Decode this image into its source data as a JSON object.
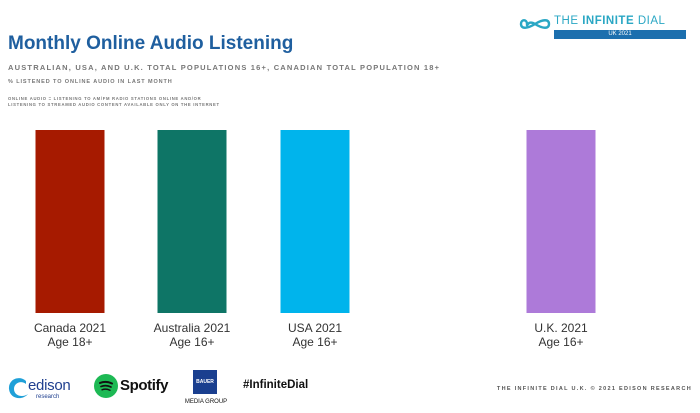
{
  "header": {
    "title": "Monthly Online Audio Listening",
    "subtitle": "AUSTRALIAN, USA, AND U.K. TOTAL POPULATIONS 16+, CANADIAN TOTAL POPULATION 18+",
    "subtitle2": "% LISTENED TO ONLINE AUDIO IN LAST MONTH",
    "note_line1": "ONLINE AUDIO = LISTENING TO AM/FM RADIO STATIONS ONLINE AND/OR",
    "note_line2": "LISTENING TO STREAMED AUDIO CONTENT AVAILABLE ONLY ON THE INTERNET"
  },
  "brand": {
    "prefix": "THE ",
    "strong": "INFINITE",
    "suffix": " DIAL",
    "edition": "UK 2021",
    "color": "#2aa7c4",
    "bar_color": "#1c6fae"
  },
  "chart_data": {
    "type": "bar",
    "categories": [
      "Canada 2021",
      "Australia 2021",
      "USA 2021",
      "U.K. 2021"
    ],
    "category_sublabels": [
      "Age 18+",
      "Age 16+",
      "Age 16+",
      "Age 16+"
    ],
    "values": [
      71,
      73,
      68,
      75
    ],
    "colors": [
      "#a61a00",
      "#0e7566",
      "#00b4ec",
      "#ad7ad9"
    ],
    "ylim": [
      0,
      100
    ],
    "grid": false,
    "show_value_labels": true
  },
  "footer": {
    "edison": "edison",
    "edison_sub": "research",
    "spotify": "Spotify",
    "bauer_box": "BAUER",
    "bauer": "MEDIA GROUP",
    "hashtag": "#InfiniteDial",
    "copyright": "THE INFINITE DIAL U.K. © 2021 EDISON RESEARCH"
  }
}
